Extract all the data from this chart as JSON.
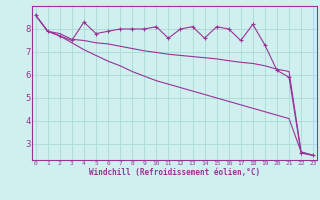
{
  "xlabel": "Windchill (Refroidissement éolien,°C)",
  "background_color": "#cff0ee",
  "grid_color": "#b0ddd8",
  "line_color": "#993399",
  "spine_color": "#993399",
  "x_ticks": [
    0,
    1,
    2,
    3,
    4,
    5,
    6,
    7,
    8,
    9,
    10,
    11,
    12,
    13,
    14,
    15,
    16,
    17,
    18,
    19,
    20,
    21,
    22,
    23
  ],
  "y_ticks": [
    3,
    4,
    5,
    6,
    7,
    8
  ],
  "ylim": [
    2.3,
    9.0
  ],
  "xlim": [
    -0.3,
    23.3
  ],
  "line1": [
    8.6,
    7.9,
    7.7,
    7.5,
    8.3,
    7.8,
    7.9,
    8.0,
    8.0,
    8.0,
    8.1,
    7.6,
    8.0,
    8.1,
    7.6,
    8.1,
    8.0,
    7.5,
    8.2,
    7.3,
    6.2,
    5.9,
    2.6,
    2.5
  ],
  "line2": [
    8.6,
    7.9,
    7.8,
    7.55,
    7.5,
    7.4,
    7.35,
    7.25,
    7.15,
    7.05,
    6.98,
    6.9,
    6.85,
    6.8,
    6.75,
    6.7,
    6.62,
    6.55,
    6.5,
    6.4,
    6.25,
    6.15,
    2.65,
    2.5
  ],
  "line3": [
    8.6,
    7.9,
    7.7,
    7.4,
    7.1,
    6.85,
    6.6,
    6.4,
    6.15,
    5.95,
    5.75,
    5.6,
    5.45,
    5.3,
    5.15,
    5.0,
    4.85,
    4.7,
    4.55,
    4.4,
    4.25,
    4.1,
    2.65,
    2.5
  ]
}
